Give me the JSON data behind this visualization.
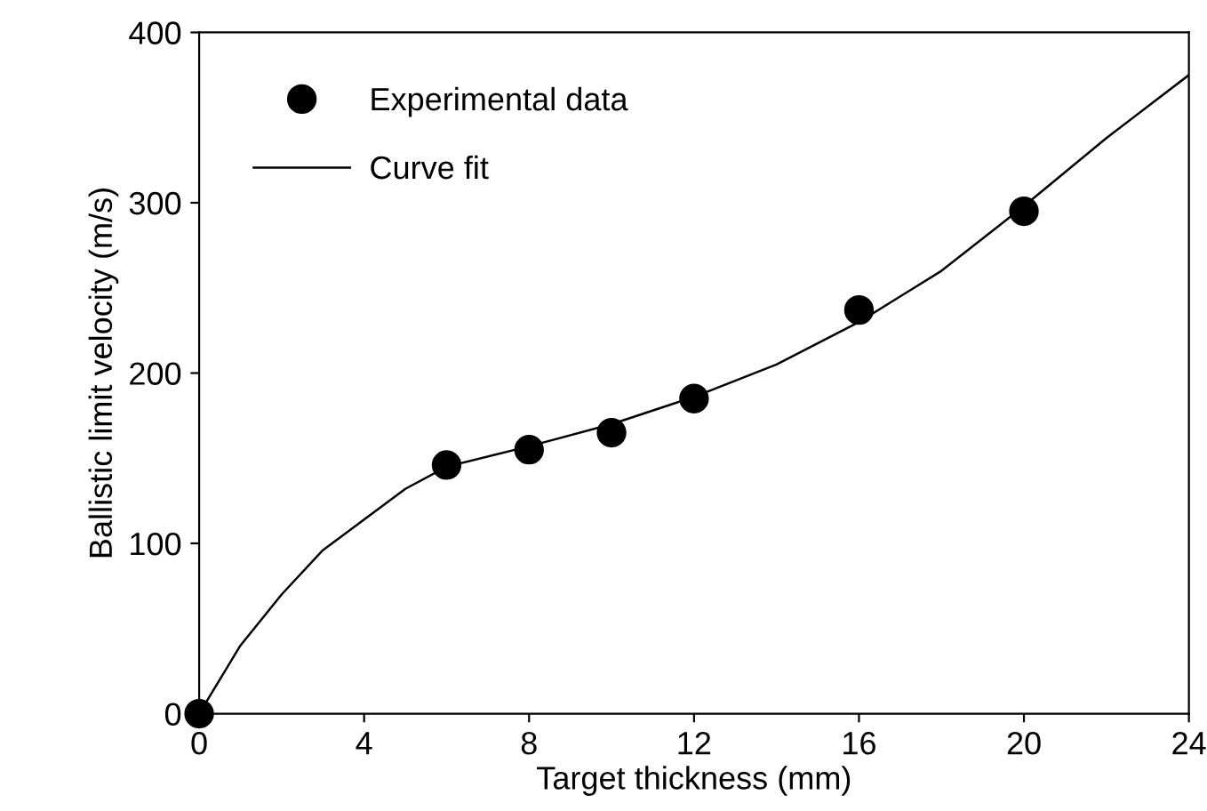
{
  "chart_data": {
    "type": "scatter",
    "xlabel": "Target thickness (mm)",
    "ylabel": "Ballistic limit velocity (m/s)",
    "xlim": [
      0,
      24
    ],
    "xticks": [
      0,
      4,
      8,
      12,
      16,
      20,
      24
    ],
    "ylim": [
      0,
      400
    ],
    "yticks": [
      0,
      100,
      200,
      300,
      400
    ],
    "grid": false,
    "legend": "top left",
    "series": [
      {
        "name": "Experimental data",
        "color": "#000000",
        "marker": "circle",
        "x": [
          0,
          6,
          8,
          10,
          12,
          16,
          20
        ],
        "values": [
          0,
          146,
          155,
          165,
          185,
          237,
          295
        ]
      },
      {
        "name": "Curve fit",
        "type": "line",
        "color": "#000000",
        "marker": "none",
        "line_style": "solid",
        "x": [
          0,
          1,
          2,
          3,
          4,
          5,
          6,
          8,
          10,
          12,
          14,
          16,
          18,
          20,
          22,
          24
        ],
        "values": [
          0,
          40,
          70,
          96,
          114,
          132,
          145,
          157,
          170,
          186,
          205,
          230,
          260,
          298,
          338,
          375
        ]
      }
    ]
  }
}
